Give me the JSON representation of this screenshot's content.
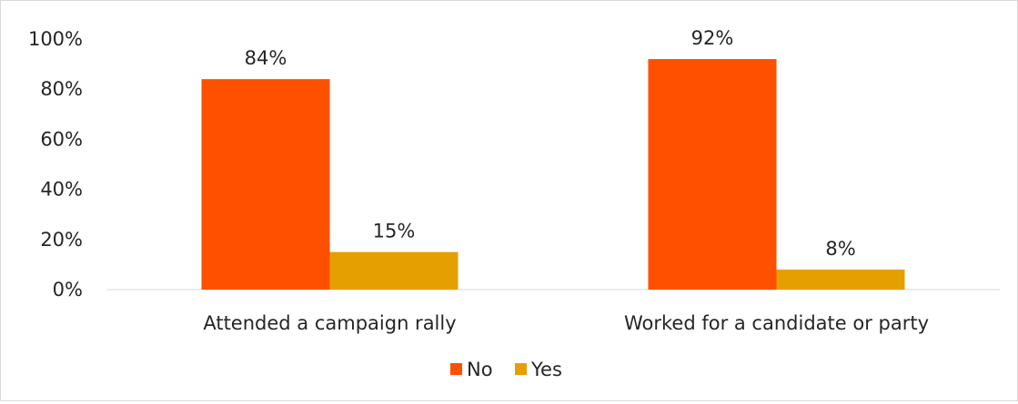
{
  "chart_data": {
    "type": "bar",
    "categories": [
      "Attended a campaign rally",
      "Worked for a candidate or party"
    ],
    "series": [
      {
        "name": "No",
        "values": [
          84,
          92
        ],
        "labels": [
          "84%",
          "92%"
        ],
        "color": "#ff5000"
      },
      {
        "name": "Yes",
        "values": [
          15,
          8
        ],
        "labels": [
          "15%",
          "8%"
        ],
        "color": "#e69f00"
      }
    ],
    "yticks": [
      "0%",
      "20%",
      "40%",
      "60%",
      "80%",
      "100%"
    ],
    "ylim": [
      0,
      100
    ],
    "grid": false,
    "legend": "bottom",
    "title": "",
    "xlabel": "",
    "ylabel": ""
  }
}
